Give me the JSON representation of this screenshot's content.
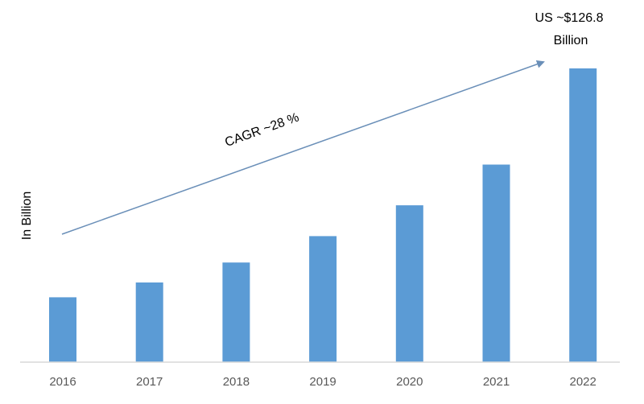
{
  "chart_data": {
    "type": "bar",
    "categories": [
      "2016",
      "2017",
      "2018",
      "2019",
      "2020",
      "2021",
      "2022"
    ],
    "values": [
      28.0,
      34.4,
      43.0,
      54.4,
      67.7,
      85.3,
      126.8
    ],
    "ylabel": "In Billion",
    "ylim": [
      0,
      126.8
    ],
    "grid": false,
    "bar_color": "#5b9bd5",
    "axis_color": "#d9d9d9",
    "arrow_color": "#6a8fb8",
    "annotations": {
      "growth_label": "CAGR ~28 %",
      "end_value_line1": "US ~$126.8",
      "end_value_line2": "Billion"
    }
  }
}
